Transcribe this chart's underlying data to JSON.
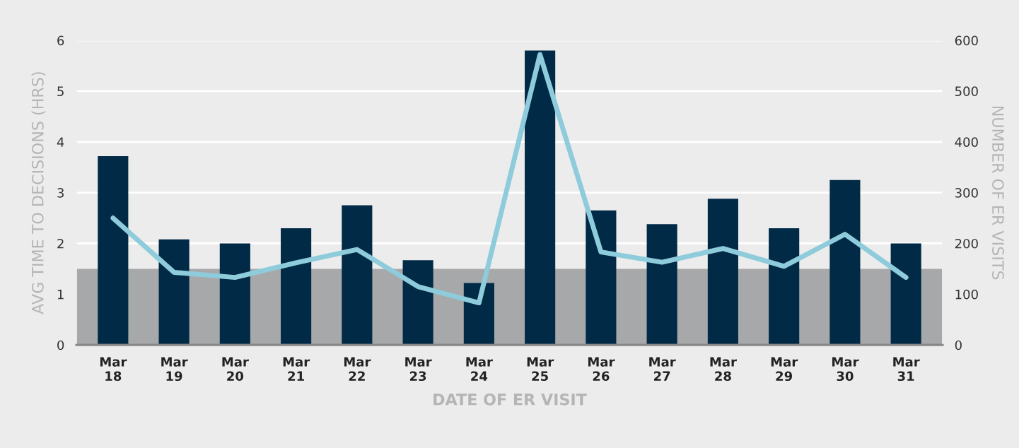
{
  "chart_data": {
    "type": "bar",
    "xlabel": "DATE OF ER VISIT",
    "ylabel": "AVG TIME TO DECISIONS (HRS)",
    "y2label": "NUMBER OF ER VISITS",
    "categories": [
      "Mar\n18",
      "Mar\n19",
      "Mar\n20",
      "Mar\n21",
      "Mar\n22",
      "Mar\n23",
      "Mar\n24",
      "Mar\n25",
      "Mar\n26",
      "Mar\n27",
      "Mar\n28",
      "Mar\n29",
      "Mar\n30",
      "Mar\n31"
    ],
    "series": [
      {
        "color": "#012a47",
        "values": [
          3.72,
          2.08,
          2.0,
          2.3,
          2.75,
          1.67,
          1.22,
          5.8,
          2.65,
          2.38,
          2.88,
          2.3,
          3.25,
          2.0
        ]
      },
      {
        "type": "line",
        "axis": "y2",
        "color": "#8ecbdb",
        "values": [
          250,
          143,
          133,
          162,
          188,
          115,
          83,
          572,
          183,
          163,
          190,
          155,
          218,
          133
        ]
      }
    ],
    "ylim": [
      0,
      6
    ],
    "yticks": [
      0,
      1,
      2,
      3,
      4,
      5,
      6
    ],
    "y2lim": [
      0,
      600
    ],
    "y2ticks": [
      0,
      100,
      200,
      300,
      400,
      500,
      600
    ],
    "bands": [
      {
        "axis": "y",
        "from": 0,
        "to": 1.5,
        "color": "#a7a8aa"
      }
    ],
    "grid": "y",
    "legend": false,
    "line_style": "solid",
    "marker": "none"
  }
}
